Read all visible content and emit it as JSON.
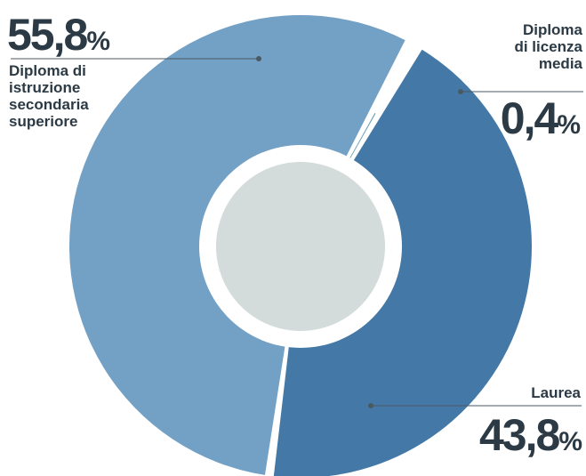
{
  "chart_data": {
    "type": "pie",
    "style": "donut",
    "slices": [
      {
        "label_lines": [
          "Diploma di",
          "istruzione",
          "secondaria",
          "superiore"
        ],
        "value": 55.8,
        "value_label": "55,8",
        "color": "#73a0c5"
      },
      {
        "label_lines": [
          "Diploma",
          "di licenza",
          "media"
        ],
        "value": 0.4,
        "value_label": "0,4",
        "color": "#6b9fb5"
      },
      {
        "label_lines": [
          "Laurea"
        ],
        "value": 43.8,
        "value_label": "43,8",
        "color": "#4478a6"
      }
    ],
    "unit": "%",
    "center_color": "#d3dcdb",
    "leader_color": "#4a5a63"
  }
}
